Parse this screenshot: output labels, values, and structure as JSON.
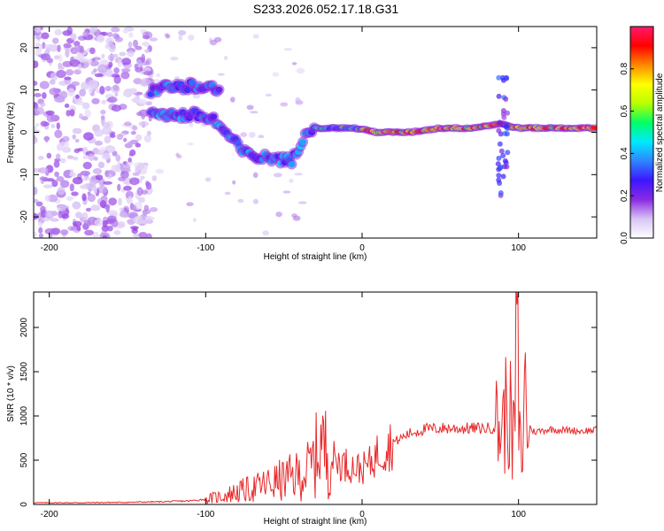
{
  "title": "S233.2026.052.17.18.G31",
  "colors": {
    "frame": "#000000",
    "snr_line": "#e8282a",
    "background": "#ffffff"
  },
  "chart_data": [
    {
      "type": "heatmap",
      "name": "spectrogram",
      "xlabel": "Height of straight line (km)",
      "ylabel": "Frequency (Hz)",
      "xlim": [
        -210,
        150
      ],
      "ylim": [
        -25,
        25
      ],
      "x_ticks": [
        -200,
        -100,
        0,
        100
      ],
      "y_ticks": [
        -20,
        -10,
        0,
        10,
        20
      ],
      "colorbar": {
        "label": "Normalized spectral amplitude",
        "range": [
          0,
          1
        ],
        "ticks": [
          "0.0",
          "0.2",
          "0.4",
          "0.6",
          "0.8"
        ],
        "tick_values": [
          0,
          0.2,
          0.4,
          0.6,
          0.8
        ],
        "colormap": [
          "#ffffff",
          "#d8c4f4",
          "#8a2be2",
          "#3c16ff",
          "#2f84ff",
          "#00eaff",
          "#00ff66",
          "#b8ff00",
          "#ffff00",
          "#ff8800",
          "#ff0000",
          "#ff1a6b"
        ]
      },
      "features": {
        "noise_region_x": [
          -210,
          -135
        ],
        "main_trace": [
          {
            "x": -135,
            "f": 5
          },
          {
            "x": -120,
            "f": 4
          },
          {
            "x": -105,
            "f": 4
          },
          {
            "x": -95,
            "f": 3
          },
          {
            "x": -85,
            "f": -1
          },
          {
            "x": -75,
            "f": -5
          },
          {
            "x": -65,
            "f": -6
          },
          {
            "x": -55,
            "f": -6
          },
          {
            "x": -45,
            "f": -7
          },
          {
            "x": -35,
            "f": 1
          },
          {
            "x": -25,
            "f": 1
          },
          {
            "x": -15,
            "f": 1
          },
          {
            "x": -5,
            "f": 1
          },
          {
            "x": 10,
            "f": 0
          },
          {
            "x": 30,
            "f": 0
          },
          {
            "x": 50,
            "f": 1
          },
          {
            "x": 70,
            "f": 1
          },
          {
            "x": 88,
            "f": 2
          },
          {
            "x": 100,
            "f": 1
          },
          {
            "x": 120,
            "f": 1
          },
          {
            "x": 150,
            "f": 1
          }
        ],
        "upper_trace": [
          {
            "x": -135,
            "f": 10
          },
          {
            "x": -120,
            "f": 11
          },
          {
            "x": -100,
            "f": 11
          },
          {
            "x": -90,
            "f": 10
          }
        ]
      }
    },
    {
      "type": "line",
      "name": "snr",
      "xlabel": "Height of straight line (km)",
      "ylabel": "SNR (10 * v/v)",
      "xlim": [
        -210,
        150
      ],
      "ylim": [
        0,
        2400
      ],
      "x_ticks": [
        -200,
        -100,
        0,
        100
      ],
      "y_ticks": [
        0,
        500,
        1000,
        1500,
        2000
      ],
      "series": [
        {
          "name": "SNR",
          "x": [
            -210,
            -180,
            -150,
            -130,
            -110,
            -100,
            -90,
            -80,
            -70,
            -60,
            -50,
            -40,
            -35,
            -30,
            -27,
            -25,
            -20,
            -15,
            -10,
            -5,
            0,
            5,
            10,
            20,
            30,
            40,
            50,
            60,
            70,
            80,
            86,
            90,
            94,
            96,
            98,
            99,
            100,
            102,
            104,
            106,
            110,
            120,
            130,
            140,
            150
          ],
          "y": [
            20,
            20,
            25,
            30,
            40,
            60,
            90,
            140,
            180,
            230,
            280,
            330,
            380,
            500,
            750,
            650,
            520,
            480,
            450,
            420,
            400,
            460,
            580,
            700,
            800,
            850,
            860,
            860,
            860,
            860,
            880,
            900,
            1200,
            600,
            1100,
            2300,
            1000,
            400,
            1350,
            900,
            820,
            850,
            840,
            830,
            840
          ]
        }
      ]
    }
  ]
}
